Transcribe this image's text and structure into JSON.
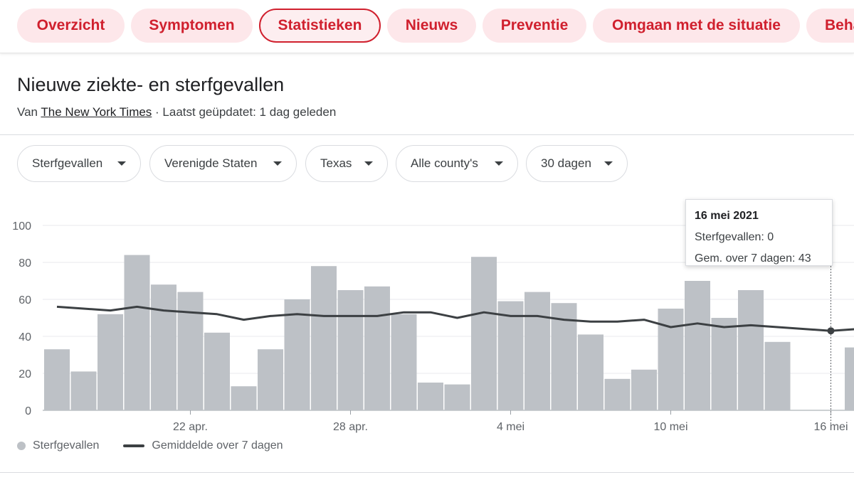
{
  "tabs": [
    {
      "label": "Overzicht"
    },
    {
      "label": "Symptomen"
    },
    {
      "label": "Statistieken"
    },
    {
      "label": "Nieuws"
    },
    {
      "label": "Preventie"
    },
    {
      "label": "Omgaan met de situatie"
    },
    {
      "label": "Beha"
    }
  ],
  "header": {
    "title": "Nieuwe ziekte- en sterfgevallen",
    "source_prefix": "Van ",
    "source": "The New York Times",
    "updated": " · Laatst geüpdatet: 1 dag geleden"
  },
  "filters": [
    {
      "label": "Sterfgevallen"
    },
    {
      "label": "Verenigde Staten"
    },
    {
      "label": "Texas"
    },
    {
      "label": "Alle county's"
    },
    {
      "label": "30 dagen"
    }
  ],
  "tooltip": {
    "date": "16 mei 2021",
    "line1": "Sterfgevallen: 0",
    "line2": "Gem. over 7 dagen: 43"
  },
  "legend": {
    "bars": "Sterfgevallen",
    "line": "Gemiddelde over 7 dagen"
  },
  "colors": {
    "accent": "#d0202e",
    "bar": "#bdc1c6",
    "line": "#3c4043"
  },
  "chart_data": {
    "type": "bar",
    "categories": [
      "17 apr.",
      "18 apr.",
      "19 apr.",
      "20 apr.",
      "21 apr.",
      "22 apr.",
      "23 apr.",
      "24 apr.",
      "25 apr.",
      "26 apr.",
      "27 apr.",
      "28 apr.",
      "29 apr.",
      "30 apr.",
      "1 mei",
      "2 mei",
      "3 mei",
      "4 mei",
      "5 mei",
      "6 mei",
      "7 mei",
      "8 mei",
      "9 mei",
      "10 mei",
      "11 mei",
      "12 mei",
      "13 mei",
      "14 mei",
      "15 mei",
      "16 mei",
      "17 mei"
    ],
    "series": [
      {
        "name": "Sterfgevallen",
        "values": [
          33,
          21,
          52,
          84,
          68,
          64,
          42,
          13,
          33,
          60,
          78,
          65,
          67,
          52,
          15,
          14,
          83,
          59,
          64,
          58,
          41,
          17,
          22,
          55,
          70,
          50,
          65,
          37,
          null,
          0,
          34
        ]
      },
      {
        "name": "Gemiddelde over 7 dagen",
        "values": [
          56,
          55,
          54,
          56,
          54,
          53,
          52,
          49,
          51,
          52,
          51,
          51,
          51,
          53,
          53,
          50,
          53,
          51,
          51,
          49,
          48,
          48,
          49,
          45,
          47,
          45,
          46,
          45,
          null,
          43,
          44
        ]
      }
    ],
    "x_ticks": [
      "22 apr.",
      "28 apr.",
      "4 mei",
      "10 mei",
      "16 mei"
    ],
    "y_ticks": [
      0,
      20,
      40,
      60,
      80,
      100
    ],
    "ylim": [
      0,
      100
    ],
    "highlight_category": "16 mei",
    "grid": true,
    "legend_position": "bottom-left"
  }
}
